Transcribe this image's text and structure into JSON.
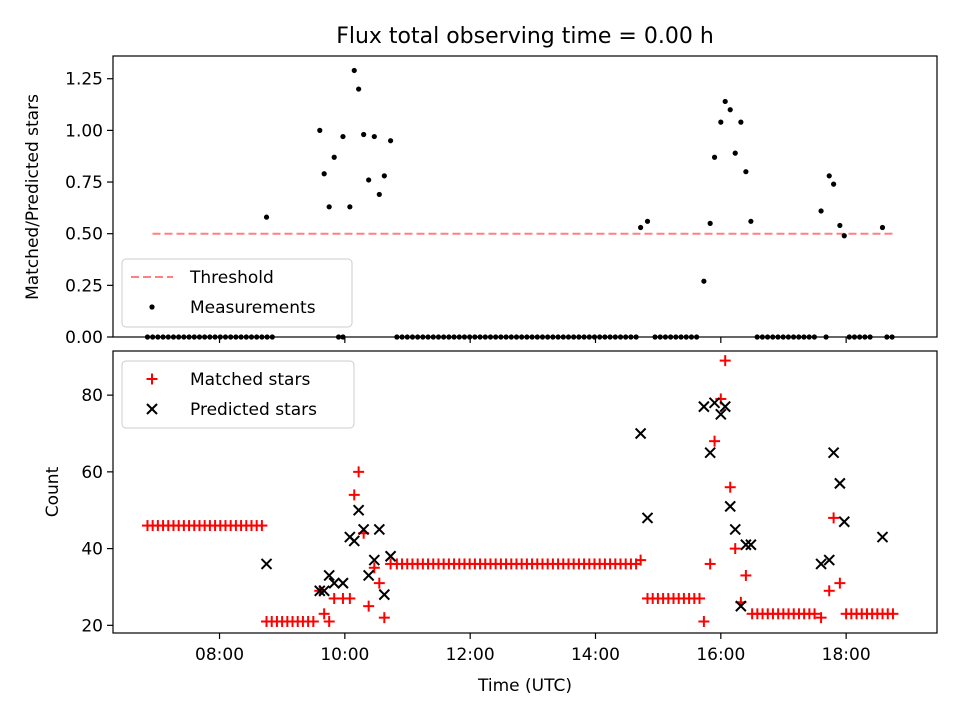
{
  "chart_data": [
    {
      "type": "scatter",
      "title": "Flux total observing time = 0.00 h",
      "ylabel": "Matched/Predicted stars",
      "xlabel": "",
      "ylim": [
        0,
        1.36
      ],
      "yticks": [
        0,
        0.25,
        0.5,
        0.75,
        1.0,
        1.25
      ],
      "ytick_labels": [
        "0.00",
        "0.25",
        "0.50",
        "0.75",
        "1.00",
        "1.25"
      ],
      "legend_position": "lower-left",
      "threshold": {
        "name": "Threshold",
        "value": 0.5,
        "x_range": [
          6.93,
          18.77
        ],
        "color": "#ff8080"
      },
      "measurements": {
        "name": "Measurements",
        "color": "#000000",
        "points": [
          [
            8.75,
            0.58
          ],
          [
            9.6,
            1.0
          ],
          [
            9.67,
            0.79
          ],
          [
            9.75,
            0.63
          ],
          [
            9.83,
            0.87
          ],
          [
            9.97,
            0.97
          ],
          [
            10.08,
            0.63
          ],
          [
            10.15,
            1.29
          ],
          [
            10.22,
            1.2
          ],
          [
            10.3,
            0.98
          ],
          [
            10.38,
            0.76
          ],
          [
            10.47,
            0.97
          ],
          [
            10.55,
            0.69
          ],
          [
            10.63,
            0.78
          ],
          [
            10.73,
            0.95
          ],
          [
            14.72,
            0.53
          ],
          [
            14.83,
            0.56
          ],
          [
            15.73,
            0.27
          ],
          [
            15.83,
            0.55
          ],
          [
            15.9,
            0.87
          ],
          [
            16.0,
            1.04
          ],
          [
            16.07,
            1.14
          ],
          [
            16.15,
            1.1
          ],
          [
            16.23,
            0.89
          ],
          [
            16.32,
            1.04
          ],
          [
            16.4,
            0.8
          ],
          [
            16.48,
            0.56
          ],
          [
            17.6,
            0.61
          ],
          [
            17.73,
            0.78
          ],
          [
            17.8,
            0.74
          ],
          [
            17.9,
            0.54
          ],
          [
            17.97,
            0.49
          ],
          [
            18.58,
            0.53
          ]
        ],
        "zero_points": [
          [
            6.85,
            8.85,
            0.083
          ],
          [
            9.9,
            9.97,
            0.07
          ],
          [
            10.83,
            14.67,
            0.083
          ],
          [
            14.95,
            15.68,
            0.083
          ],
          [
            16.58,
            17.5,
            0.083
          ],
          [
            17.68,
            17.68,
            0.083
          ],
          [
            18.05,
            18.45,
            0.083
          ],
          [
            18.65,
            18.75,
            0.083
          ]
        ]
      },
      "color_series": {
        "matched": "#ff0000",
        "predicted": "#000000"
      }
    },
    {
      "type": "scatter",
      "xlabel": "Time (UTC)",
      "ylabel": "Count",
      "xlim": [
        6.3,
        19.45
      ],
      "xticks": [
        8,
        10,
        12,
        14,
        16,
        18
      ],
      "xtick_labels": [
        "08:00",
        "10:00",
        "12:00",
        "14:00",
        "16:00",
        "18:00"
      ],
      "ylim": [
        18,
        91.5
      ],
      "yticks": [
        20,
        40,
        60,
        80
      ],
      "ytick_labels": [
        "20",
        "40",
        "60",
        "80"
      ],
      "legend_position": "top-left",
      "series": [
        {
          "name": "Matched stars",
          "color": "#ff0000",
          "marker": "plus",
          "runs": [
            [
              6.85,
              8.75,
              0.083,
              46
            ],
            [
              8.75,
              9.55,
              0.083,
              21
            ],
            [
              10.83,
              14.67,
              0.083,
              36
            ],
            [
              14.83,
              15.67,
              0.083,
              27
            ],
            [
              16.5,
              17.5,
              0.083,
              23
            ],
            [
              18.0,
              18.75,
              0.083,
              23
            ]
          ],
          "points": [
            [
              9.6,
              29
            ],
            [
              9.67,
              23
            ],
            [
              9.75,
              21
            ],
            [
              9.83,
              27
            ],
            [
              9.97,
              27
            ],
            [
              10.08,
              27
            ],
            [
              10.15,
              54
            ],
            [
              10.22,
              60
            ],
            [
              10.3,
              44
            ],
            [
              10.38,
              25
            ],
            [
              10.47,
              35
            ],
            [
              10.55,
              31
            ],
            [
              10.63,
              22
            ],
            [
              10.73,
              36
            ],
            [
              14.72,
              37
            ],
            [
              15.73,
              21
            ],
            [
              15.83,
              36
            ],
            [
              15.9,
              68
            ],
            [
              16.0,
              79
            ],
            [
              16.07,
              89
            ],
            [
              16.15,
              56
            ],
            [
              16.23,
              40
            ],
            [
              16.32,
              26
            ],
            [
              16.4,
              33
            ],
            [
              17.6,
              22
            ],
            [
              17.73,
              29
            ],
            [
              17.8,
              48
            ],
            [
              17.9,
              31
            ]
          ]
        },
        {
          "name": "Predicted stars",
          "color": "#000000",
          "marker": "x",
          "points": [
            [
              8.75,
              36
            ],
            [
              9.6,
              29
            ],
            [
              9.67,
              29
            ],
            [
              9.75,
              33
            ],
            [
              9.83,
              31
            ],
            [
              9.97,
              31
            ],
            [
              10.08,
              43
            ],
            [
              10.15,
              42
            ],
            [
              10.22,
              50
            ],
            [
              10.3,
              45
            ],
            [
              10.38,
              33
            ],
            [
              10.47,
              37
            ],
            [
              10.55,
              45
            ],
            [
              10.63,
              28
            ],
            [
              10.73,
              38
            ],
            [
              14.72,
              70
            ],
            [
              14.83,
              48
            ],
            [
              15.73,
              77
            ],
            [
              15.83,
              65
            ],
            [
              15.9,
              78
            ],
            [
              16.0,
              75
            ],
            [
              16.07,
              77
            ],
            [
              16.15,
              51
            ],
            [
              16.23,
              45
            ],
            [
              16.32,
              25
            ],
            [
              16.4,
              41
            ],
            [
              16.48,
              41
            ],
            [
              17.6,
              36
            ],
            [
              17.73,
              37
            ],
            [
              17.8,
              65
            ],
            [
              17.9,
              57
            ],
            [
              17.97,
              47
            ],
            [
              18.58,
              43
            ]
          ]
        }
      ]
    }
  ]
}
